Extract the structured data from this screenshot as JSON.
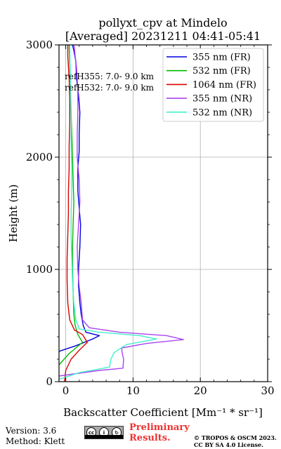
{
  "chart_data": {
    "type": "line",
    "title": [
      "pollyxt_cpv at Mindelo",
      "[Averaged] 20231211 04:41-05:41"
    ],
    "xlabel": "Backscatter Coefficient [Mm⁻¹ * sr⁻¹]",
    "ylabel": "Height (m)",
    "xlim": [
      -1,
      30
    ],
    "ylim": [
      0,
      3000
    ],
    "xticks": [
      0,
      10,
      20,
      30
    ],
    "yticks": [
      0,
      1000,
      2000,
      3000
    ],
    "grid": true,
    "legend_position": "top-right",
    "annotations": [
      "refH355:  7.0- 9.0 km",
      "refH532:  7.0- 9.0 km"
    ],
    "series": [
      {
        "name": "355 nm (FR)",
        "color": "#0000dd",
        "x": [
          -1.0,
          1.5,
          4.0,
          5.0,
          3.0,
          2.6,
          2.3,
          2.1,
          1.9,
          1.9,
          2.1,
          2.2,
          2.0,
          1.8,
          1.8,
          2.0,
          2.0,
          2.1,
          1.9,
          1.6,
          1.5,
          1.2,
          1.0
        ],
        "y": [
          270,
          320,
          380,
          410,
          440,
          500,
          600,
          700,
          850,
          1000,
          1200,
          1400,
          1550,
          1700,
          1900,
          2050,
          2200,
          2400,
          2550,
          2700,
          2850,
          2950,
          3000
        ]
      },
      {
        "name": "532 nm (FR)",
        "color": "#00bb00",
        "x": [
          -1.0,
          0.5,
          1.5,
          2.5,
          1.8,
          1.4,
          1.2,
          1.1,
          1.0,
          1.0,
          1.1,
          1.2,
          1.1,
          1.0,
          0.9,
          0.8,
          0.7,
          0.6,
          0.5
        ],
        "y": [
          150,
          250,
          300,
          350,
          420,
          500,
          600,
          800,
          1000,
          1200,
          1400,
          1600,
          1800,
          2000,
          2200,
          2400,
          2600,
          2800,
          3000
        ]
      },
      {
        "name": "1064 nm (FR)",
        "color": "#dd0000",
        "x": [
          -0.2,
          0.0,
          0.8,
          2.0,
          3.2,
          2.5,
          1.3,
          0.6,
          0.3,
          0.2,
          0.2,
          0.3,
          0.4,
          0.4,
          0.5,
          0.5,
          0.6,
          0.6,
          0.5,
          0.3,
          0.3
        ],
        "y": [
          0,
          100,
          200,
          280,
          350,
          420,
          460,
          550,
          700,
          900,
          1100,
          1300,
          1500,
          1700,
          1900,
          2100,
          2300,
          2500,
          2700,
          2900,
          3000
        ]
      },
      {
        "name": "355 nm (NR)",
        "color": "#aa44ee",
        "x": [
          -1.0,
          5.0,
          8.5,
          8.6,
          8.4,
          8.3,
          12.0,
          17.5,
          15.0,
          8.0,
          3.5,
          2.5,
          2.3,
          2.0,
          1.8,
          1.7,
          1.9,
          2.1,
          2.0,
          1.7,
          1.7,
          1.8,
          1.8,
          1.6,
          1.4,
          1.3,
          1.2
        ],
        "y": [
          50,
          100,
          120,
          200,
          250,
          300,
          340,
          375,
          410,
          440,
          480,
          550,
          700,
          850,
          1000,
          1200,
          1400,
          1600,
          1800,
          2000,
          2200,
          2400,
          2600,
          2800,
          2900,
          2970,
          3000
        ]
      },
      {
        "name": "532 nm (NR)",
        "color": "#44eecc",
        "x": [
          -1.0,
          2.0,
          6.5,
          6.7,
          7.2,
          9.0,
          13.5,
          11.0,
          5.0,
          2.0,
          1.5,
          1.2,
          1.0,
          0.9,
          0.8,
          0.8,
          0.9,
          0.9,
          0.8,
          0.8,
          0.7,
          0.6
        ],
        "y": [
          20,
          80,
          130,
          200,
          260,
          330,
          380,
          410,
          440,
          470,
          550,
          700,
          900,
          1100,
          1300,
          1500,
          1700,
          1900,
          2100,
          2300,
          2600,
          3000
        ]
      }
    ]
  },
  "footer": {
    "version": "Version: 3.6",
    "method": "Method: Klett",
    "preliminary_line1": "Preliminary",
    "preliminary_line2": "Results.",
    "copyright_line1": "© TROPOS & OSCM 2023.",
    "copyright_line2": "CC BY SA 4.0 License.",
    "cc_badge": "CC BY SA"
  }
}
